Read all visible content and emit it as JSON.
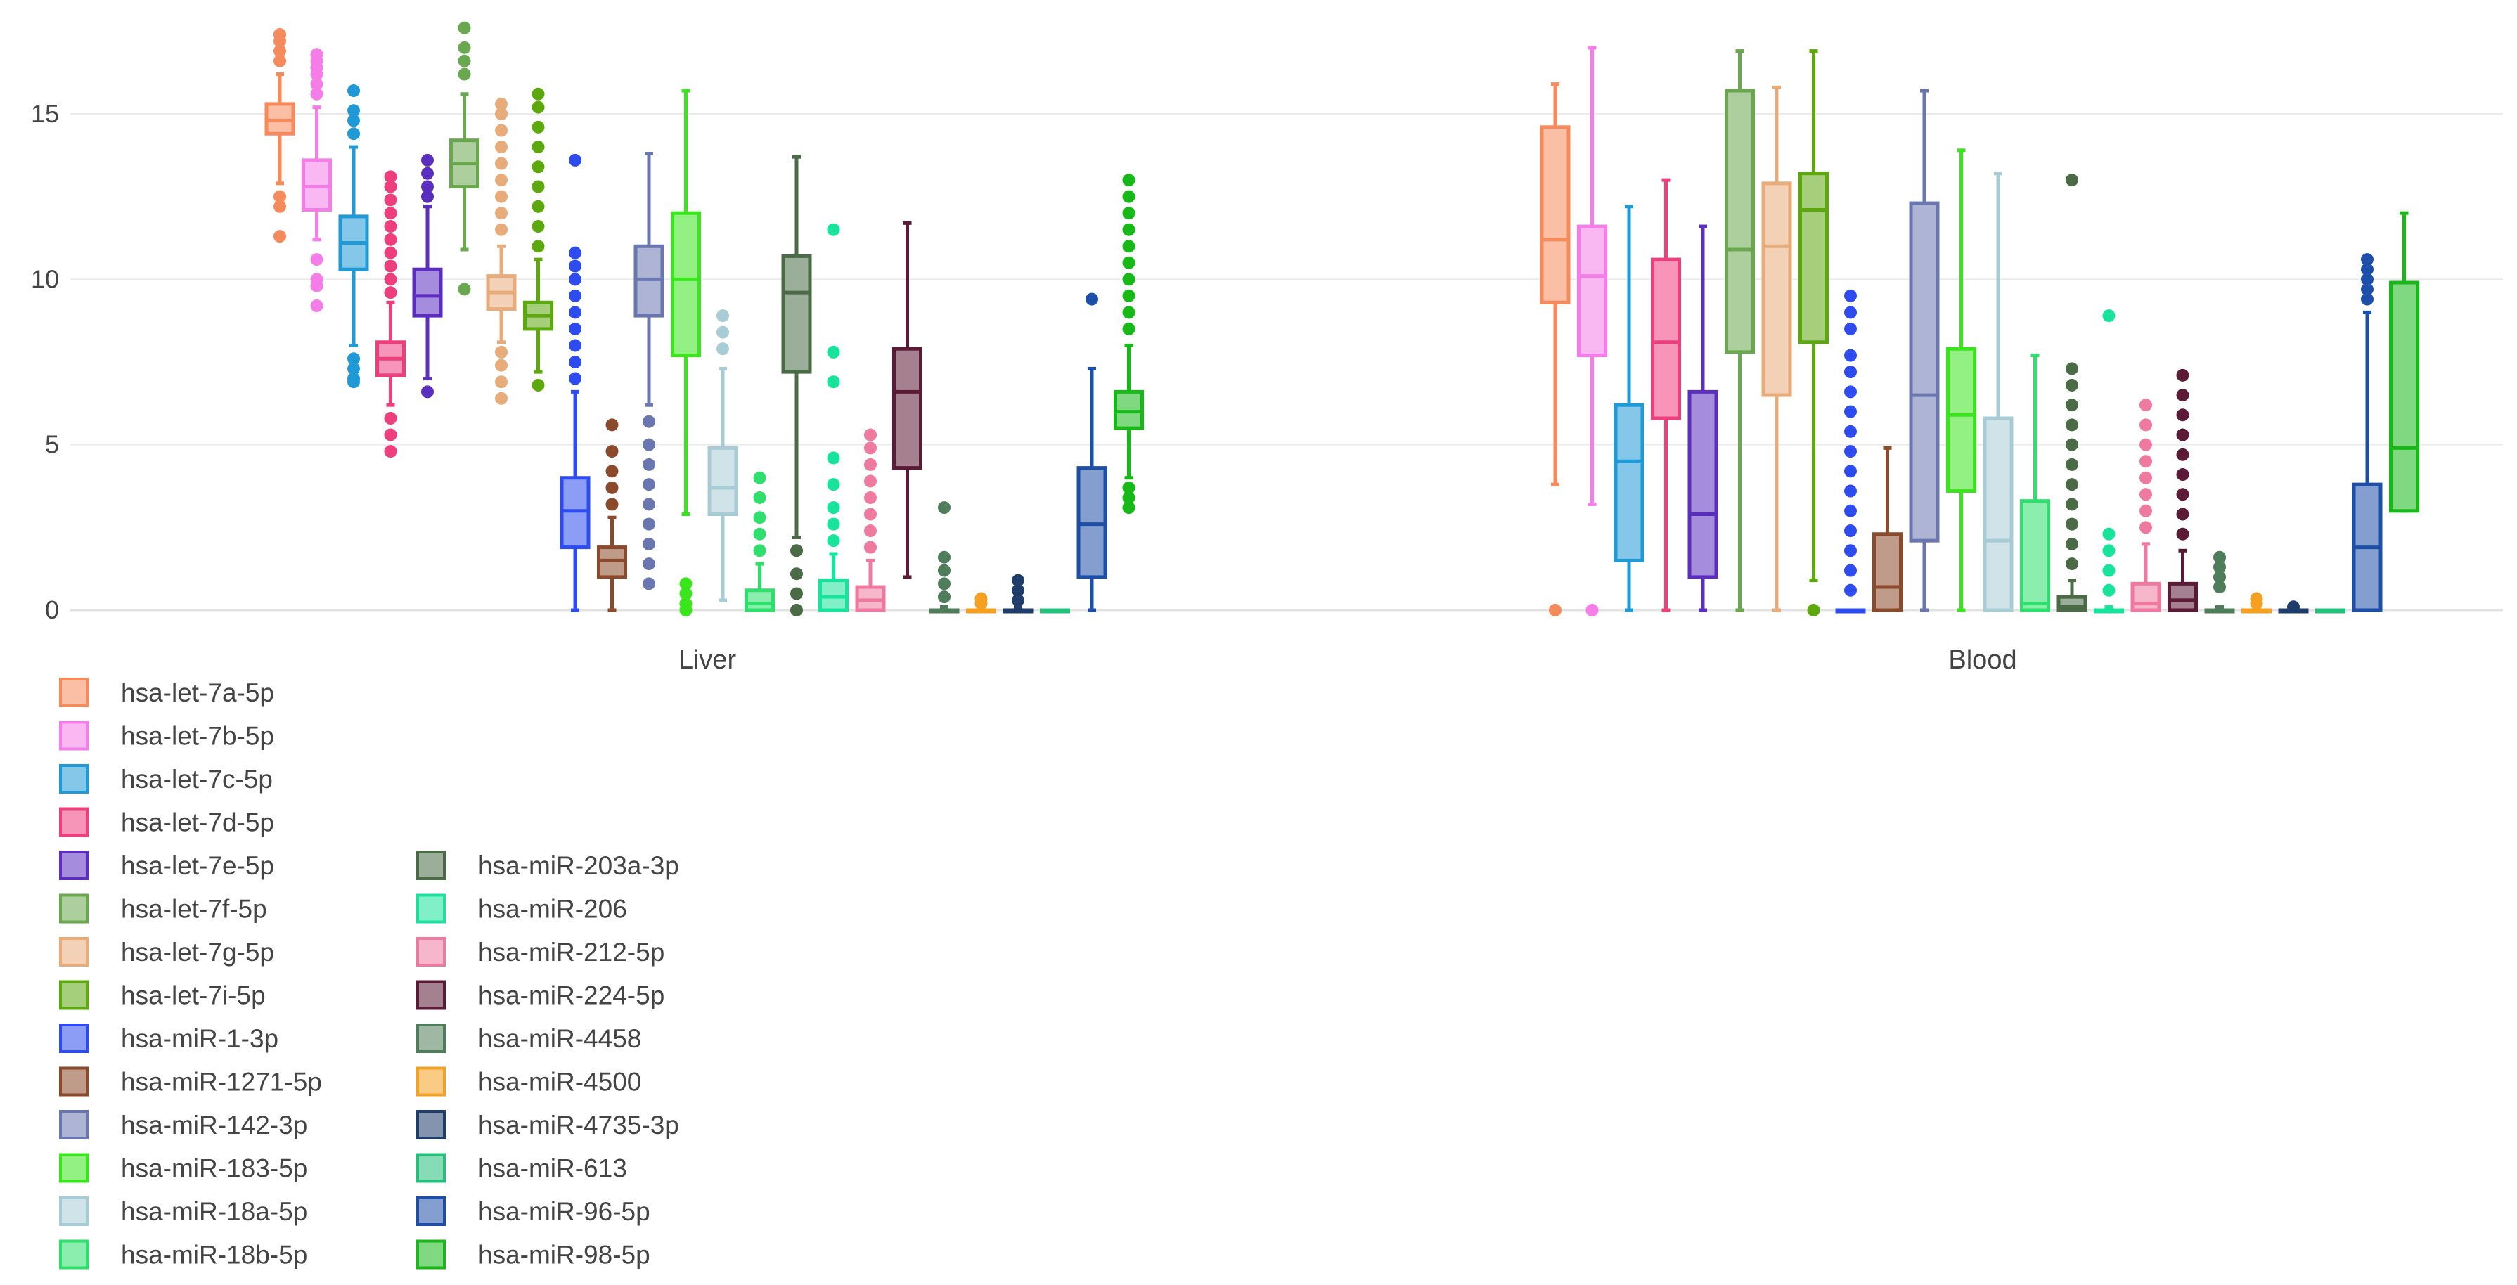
{
  "chart_data": {
    "type": "box",
    "title": "",
    "xlabel": "",
    "ylabel": "",
    "ylim": [
      -0.8,
      17.8
    ],
    "y_ticks": [
      0,
      5,
      10,
      15
    ],
    "y_tick_labels": [
      "0",
      "5",
      "10",
      "15"
    ],
    "groups": [
      "Liver",
      "Blood"
    ],
    "legend_position": "bottom-left",
    "series": [
      {
        "name": "hsa-let-7a-5p",
        "color": "#f58a5c",
        "Liver": {
          "min": 12.9,
          "q1": 14.4,
          "median": 14.8,
          "q3": 15.3,
          "max": 16.2,
          "outliers": [
            16.6,
            16.9,
            17.2,
            17.4,
            12.5,
            12.2,
            11.3
          ]
        },
        "Blood": {
          "min": 3.8,
          "q1": 9.3,
          "median": 11.2,
          "q3": 14.6,
          "max": 15.9,
          "outliers": [
            0.0
          ]
        }
      },
      {
        "name": "hsa-let-7b-5p",
        "color": "#f57de8",
        "Liver": {
          "min": 11.2,
          "q1": 12.1,
          "median": 12.8,
          "q3": 13.6,
          "max": 15.2,
          "outliers": [
            15.6,
            15.9,
            16.2,
            16.4,
            16.6,
            16.8,
            10.6,
            10.0,
            9.8,
            9.2
          ]
        },
        "Blood": {
          "min": 3.2,
          "q1": 7.7,
          "median": 10.1,
          "q3": 11.6,
          "max": 17.0,
          "outliers": [
            0.0
          ]
        }
      },
      {
        "name": "hsa-let-7c-5p",
        "color": "#1f9ad6",
        "Liver": {
          "min": 8.0,
          "q1": 10.3,
          "median": 11.1,
          "q3": 11.9,
          "max": 14.0,
          "outliers": [
            14.4,
            14.8,
            15.1,
            15.7,
            7.6,
            7.3,
            7.0,
            6.9
          ]
        },
        "Blood": {
          "min": 0.0,
          "q1": 1.5,
          "median": 4.5,
          "q3": 6.2,
          "max": 12.2,
          "outliers": []
        }
      },
      {
        "name": "hsa-let-7d-5p",
        "color": "#ee3f7c",
        "Liver": {
          "min": 6.2,
          "q1": 7.1,
          "median": 7.6,
          "q3": 8.1,
          "max": 9.3,
          "outliers": [
            9.6,
            10.0,
            10.4,
            10.8,
            11.2,
            11.6,
            12.0,
            12.4,
            12.8,
            13.1,
            5.8,
            5.3,
            4.8
          ]
        },
        "Blood": {
          "min": 0.0,
          "q1": 5.8,
          "median": 8.1,
          "q3": 10.6,
          "max": 13.0,
          "outliers": []
        }
      },
      {
        "name": "hsa-let-7e-5p",
        "color": "#5b2ec0",
        "Liver": {
          "min": 7.0,
          "q1": 8.9,
          "median": 9.5,
          "q3": 10.3,
          "max": 12.2,
          "outliers": [
            12.5,
            12.8,
            13.2,
            13.6,
            6.6
          ]
        },
        "Blood": {
          "min": 0.0,
          "q1": 1.0,
          "median": 2.9,
          "q3": 6.6,
          "max": 11.6,
          "outliers": []
        }
      },
      {
        "name": "hsa-let-7f-5p",
        "color": "#6aa84f",
        "Liver": {
          "min": 10.9,
          "q1": 12.8,
          "median": 13.5,
          "q3": 14.2,
          "max": 15.6,
          "outliers": [
            16.2,
            16.6,
            17.0,
            17.6,
            9.7
          ]
        },
        "Blood": {
          "min": 0.0,
          "q1": 7.8,
          "median": 10.9,
          "q3": 15.7,
          "max": 16.9,
          "outliers": []
        }
      },
      {
        "name": "hsa-let-7g-5p",
        "color": "#e8ac7a",
        "Liver": {
          "min": 8.1,
          "q1": 9.1,
          "median": 9.6,
          "q3": 10.1,
          "max": 11.0,
          "outliers": [
            11.5,
            12.0,
            12.5,
            13.0,
            13.5,
            14.0,
            14.5,
            15.0,
            15.3,
            7.8,
            7.4,
            6.9,
            6.4
          ]
        },
        "Blood": {
          "min": 0.0,
          "q1": 6.5,
          "median": 11.0,
          "q3": 12.9,
          "max": 15.8,
          "outliers": []
        }
      },
      {
        "name": "hsa-let-7i-5p",
        "color": "#5ea80f",
        "Liver": {
          "min": 7.2,
          "q1": 8.5,
          "median": 8.9,
          "q3": 9.3,
          "max": 10.6,
          "outliers": [
            11.0,
            11.6,
            12.2,
            12.8,
            13.4,
            14.0,
            14.6,
            15.2,
            15.6,
            6.8
          ]
        },
        "Blood": {
          "min": 0.9,
          "q1": 8.1,
          "median": 12.1,
          "q3": 13.2,
          "max": 16.9,
          "outliers": [
            0.0
          ]
        }
      },
      {
        "name": "hsa-miR-1-3p",
        "color": "#2e4cee",
        "Liver": {
          "min": 0.0,
          "q1": 1.9,
          "median": 3.0,
          "q3": 4.0,
          "max": 6.6,
          "outliers": [
            7.0,
            7.5,
            8.0,
            8.5,
            9.0,
            9.5,
            10.0,
            10.4,
            10.8,
            13.6
          ]
        },
        "Blood": {
          "min": 0.0,
          "q1": 0.0,
          "median": 0.0,
          "q3": 0.0,
          "max": 0.0,
          "outliers": [
            0.6,
            1.2,
            1.8,
            2.4,
            3.0,
            3.6,
            4.2,
            4.8,
            5.4,
            6.0,
            6.6,
            7.2,
            7.7,
            8.5,
            9.0,
            9.5
          ]
        }
      },
      {
        "name": "hsa-miR-1271-5p",
        "color": "#8a4a2b",
        "Liver": {
          "min": 0.0,
          "q1": 1.0,
          "median": 1.5,
          "q3": 1.9,
          "max": 2.8,
          "outliers": [
            3.2,
            3.7,
            4.2,
            4.8,
            5.6
          ]
        },
        "Blood": {
          "min": 0.0,
          "q1": 0.0,
          "median": 0.7,
          "q3": 2.3,
          "max": 4.9,
          "outliers": []
        }
      },
      {
        "name": "hsa-miR-142-3p",
        "color": "#6a76b0",
        "Liver": {
          "min": 6.2,
          "q1": 8.9,
          "median": 10.0,
          "q3": 11.0,
          "max": 13.8,
          "outliers": [
            5.7,
            5.0,
            4.4,
            3.8,
            3.2,
            2.6,
            2.0,
            1.4,
            0.8
          ]
        },
        "Blood": {
          "min": 0.0,
          "q1": 2.1,
          "median": 6.5,
          "q3": 12.3,
          "max": 15.7,
          "outliers": []
        }
      },
      {
        "name": "hsa-miR-183-5p",
        "color": "#39e61c",
        "Liver": {
          "min": 2.9,
          "q1": 7.7,
          "median": 10.0,
          "q3": 12.0,
          "max": 15.7,
          "outliers": [
            0.8,
            0.5,
            0.2,
            0.0
          ]
        },
        "Blood": {
          "min": 0.0,
          "q1": 3.6,
          "median": 5.9,
          "q3": 7.9,
          "max": 13.9,
          "outliers": []
        }
      },
      {
        "name": "hsa-miR-18a-5p",
        "color": "#a7ccd6",
        "Liver": {
          "min": 0.3,
          "q1": 2.9,
          "median": 3.7,
          "q3": 4.9,
          "max": 7.3,
          "outliers": [
            7.9,
            8.4,
            8.9
          ]
        },
        "Blood": {
          "min": 0.0,
          "q1": 0.0,
          "median": 2.1,
          "q3": 5.8,
          "max": 13.2,
          "outliers": []
        }
      },
      {
        "name": "hsa-miR-18b-5p",
        "color": "#2ee06b",
        "Liver": {
          "min": 0.0,
          "q1": 0.0,
          "median": 0.2,
          "q3": 0.6,
          "max": 1.4,
          "outliers": [
            1.8,
            2.3,
            2.8,
            3.4,
            4.0
          ]
        },
        "Blood": {
          "min": 0.0,
          "q1": 0.0,
          "median": 0.2,
          "q3": 3.3,
          "max": 7.7,
          "outliers": []
        }
      },
      {
        "name": "hsa-miR-203a-3p",
        "color": "#4a6b46",
        "Liver": {
          "min": 2.2,
          "q1": 7.2,
          "median": 9.6,
          "q3": 10.7,
          "max": 13.7,
          "outliers": [
            1.8,
            1.1,
            0.5,
            0.0
          ]
        },
        "Blood": {
          "min": 0.0,
          "q1": 0.0,
          "median": 0.1,
          "q3": 0.4,
          "max": 0.9,
          "outliers": [
            1.4,
            2.0,
            2.6,
            3.2,
            3.8,
            4.4,
            5.0,
            5.6,
            6.2,
            6.8,
            7.3,
            13.0
          ]
        }
      },
      {
        "name": "hsa-miR-206",
        "color": "#19e39b",
        "Liver": {
          "min": 0.0,
          "q1": 0.0,
          "median": 0.4,
          "q3": 0.9,
          "max": 1.7,
          "outliers": [
            2.1,
            2.6,
            3.1,
            3.8,
            4.6,
            6.9,
            7.8,
            11.5
          ]
        },
        "Blood": {
          "min": 0.0,
          "q1": 0.0,
          "median": 0.0,
          "q3": 0.0,
          "max": 0.1,
          "outliers": [
            0.6,
            1.2,
            1.8,
            2.3,
            8.9
          ]
        }
      },
      {
        "name": "hsa-miR-212-5p",
        "color": "#ef7aa0",
        "Liver": {
          "min": 0.0,
          "q1": 0.0,
          "median": 0.3,
          "q3": 0.7,
          "max": 1.5,
          "outliers": [
            1.9,
            2.4,
            2.9,
            3.4,
            3.9,
            4.4,
            4.9,
            5.3
          ]
        },
        "Blood": {
          "min": 0.0,
          "q1": 0.0,
          "median": 0.2,
          "q3": 0.8,
          "max": 2.0,
          "outliers": [
            2.5,
            3.0,
            3.5,
            4.0,
            4.5,
            5.0,
            5.6,
            6.2
          ]
        }
      },
      {
        "name": "hsa-miR-224-5p",
        "color": "#5b1a36",
        "Liver": {
          "min": 1.0,
          "q1": 4.3,
          "median": 6.6,
          "q3": 7.9,
          "max": 11.7,
          "outliers": []
        },
        "Blood": {
          "min": 0.0,
          "q1": 0.0,
          "median": 0.3,
          "q3": 0.8,
          "max": 1.8,
          "outliers": [
            2.3,
            2.9,
            3.5,
            4.1,
            4.7,
            5.3,
            5.9,
            6.5,
            7.1
          ]
        }
      },
      {
        "name": "hsa-miR-4458",
        "color": "#4f7d5a",
        "Liver": {
          "min": 0.0,
          "q1": 0.0,
          "median": 0.0,
          "q3": 0.0,
          "max": 0.1,
          "outliers": [
            0.4,
            0.8,
            1.2,
            1.6,
            3.1
          ]
        },
        "Blood": {
          "min": 0.0,
          "q1": 0.0,
          "median": 0.0,
          "q3": 0.0,
          "max": 0.1,
          "outliers": [
            0.7,
            1.0,
            1.3,
            1.6
          ]
        }
      },
      {
        "name": "hsa-miR-4500",
        "color": "#f5a020",
        "Liver": {
          "min": 0.0,
          "q1": 0.0,
          "median": 0.0,
          "q3": 0.0,
          "max": 0.1,
          "outliers": [
            0.2,
            0.35
          ]
        },
        "Blood": {
          "min": 0.0,
          "q1": 0.0,
          "median": 0.0,
          "q3": 0.0,
          "max": 0.1,
          "outliers": [
            0.2,
            0.35
          ]
        }
      },
      {
        "name": "hsa-miR-4735-3p",
        "color": "#1f3d6b",
        "Liver": {
          "min": 0.0,
          "q1": 0.0,
          "median": 0.0,
          "q3": 0.0,
          "max": 0.1,
          "outliers": [
            0.3,
            0.6,
            0.9
          ]
        },
        "Blood": {
          "min": 0.0,
          "q1": 0.0,
          "median": 0.0,
          "q3": 0.0,
          "max": 0.05,
          "outliers": [
            0.1
          ]
        }
      },
      {
        "name": "hsa-miR-613",
        "color": "#22c07a",
        "Liver": {
          "min": 0.0,
          "q1": 0.0,
          "median": 0.0,
          "q3": 0.0,
          "max": 0.0,
          "outliers": []
        },
        "Blood": {
          "min": 0.0,
          "q1": 0.0,
          "median": 0.0,
          "q3": 0.0,
          "max": 0.0,
          "outliers": []
        }
      },
      {
        "name": "hsa-miR-96-5p",
        "color": "#1d4fa8",
        "Liver": {
          "min": 0.0,
          "q1": 1.0,
          "median": 2.6,
          "q3": 4.3,
          "max": 7.3,
          "outliers": [
            9.4
          ]
        },
        "Blood": {
          "min": 0.0,
          "q1": 0.0,
          "median": 1.9,
          "q3": 3.8,
          "max": 9.0,
          "outliers": [
            9.4,
            9.7,
            10.0,
            10.3,
            10.6
          ]
        }
      },
      {
        "name": "hsa-miR-98-5p",
        "color": "#18b818",
        "Liver": {
          "min": 4.0,
          "q1": 5.5,
          "median": 6.0,
          "q3": 6.6,
          "max": 8.0,
          "outliers": [
            8.5,
            9.0,
            9.5,
            10.0,
            10.5,
            11.0,
            11.5,
            12.0,
            12.5,
            13.0,
            3.7,
            3.4,
            3.1
          ]
        },
        "Blood": {
          "min": 3.0,
          "q1": 3.0,
          "median": 4.9,
          "q3": 9.9,
          "max": 12.0,
          "outliers": []
        }
      }
    ]
  }
}
